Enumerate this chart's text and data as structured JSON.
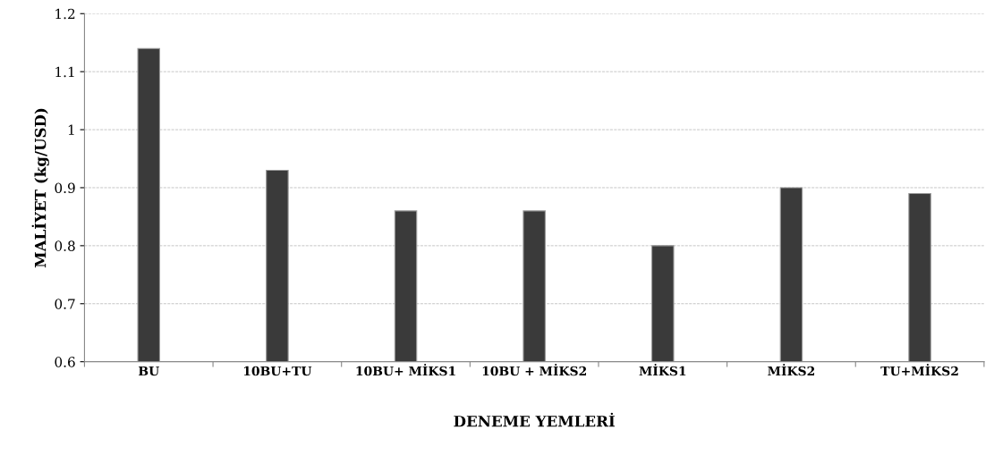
{
  "chart_data": {
    "type": "bar",
    "xlabel": "DENEME YEMLERİ",
    "ylabel": "MALİYET (kg/USD)",
    "categories": [
      "BU",
      "10BU+TU",
      "10BU+ MİKS1",
      "10BU + MİKS2",
      "MİKS1",
      "MİKS2",
      "TU+MİKS2"
    ],
    "values": [
      1.14,
      0.93,
      0.86,
      0.86,
      0.8,
      0.9,
      0.89
    ],
    "color": "#3a3a3a",
    "ylim": [
      0.6,
      1.2
    ],
    "yticks": [
      0.6,
      0.7,
      0.8,
      0.9,
      {
        "value": 1,
        "label": "1"
      },
      1.1,
      1.2
    ],
    "grid": "y",
    "legend": false
  }
}
